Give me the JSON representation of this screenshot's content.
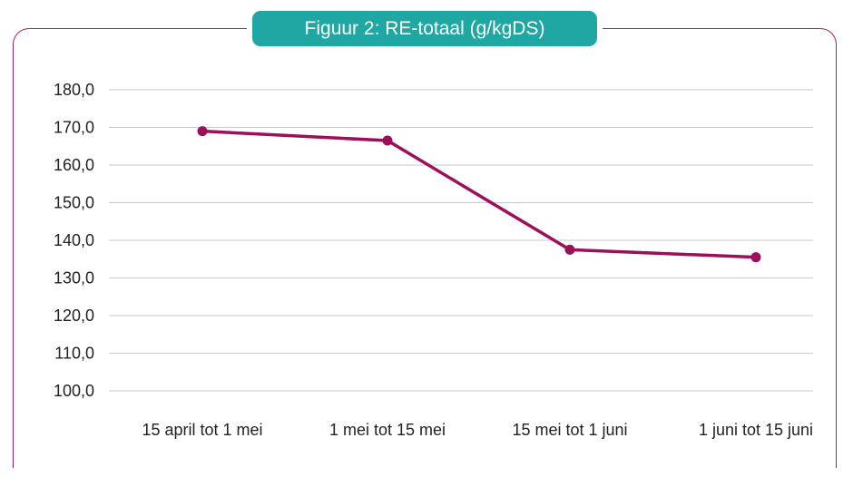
{
  "chart_data": {
    "type": "line",
    "title": "Figuur 2: RE-totaal (g/kgDS)",
    "categories": [
      "15 april tot 1 mei",
      "1 mei tot 15 mei",
      "15 mei tot 1 juni",
      "1 juni tot 15 juni"
    ],
    "series": [
      {
        "values": [
          169.0,
          166.5,
          137.5,
          135.5
        ]
      }
    ],
    "yticks": [
      "100,0",
      "110,0",
      "120,0",
      "130,0",
      "140,0",
      "150,0",
      "160,0",
      "170,0",
      "180,0"
    ],
    "ylim": [
      100,
      180
    ],
    "grid": true,
    "colors": {
      "line": "#9b1058",
      "title_bg": "#1fa8a3",
      "frame": "#a0205e"
    }
  }
}
